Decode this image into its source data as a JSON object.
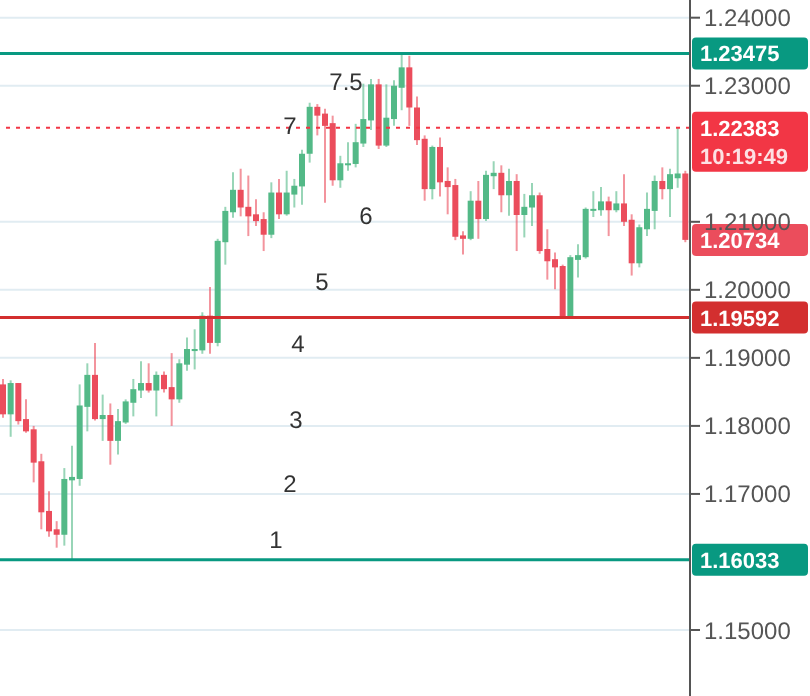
{
  "chart_data": {
    "type": "candlestick",
    "categories": [
      null,
      null,
      null,
      null,
      null,
      null,
      null,
      null,
      null,
      null,
      null,
      null,
      null,
      null,
      null,
      null,
      null,
      null,
      null,
      null,
      null,
      null,
      null,
      null,
      null,
      null,
      null,
      null,
      null,
      null,
      null,
      null,
      null,
      null,
      null,
      null,
      null,
      null,
      null,
      null,
      null,
      null,
      null,
      null,
      null,
      null,
      null,
      null,
      null,
      null,
      null,
      null,
      null,
      null,
      null,
      null,
      null,
      null,
      null,
      null,
      null,
      null,
      null,
      null,
      null,
      null,
      null,
      null,
      null,
      null,
      null,
      null,
      null,
      null,
      null,
      null,
      null,
      null,
      null,
      null,
      null,
      null,
      null,
      null,
      null,
      null,
      null,
      null,
      null,
      null
    ],
    "ohlc": [
      [
        1.1861,
        1.1869,
        1.1812,
        1.1817
      ],
      [
        1.1817,
        1.1867,
        1.1784,
        1.1863
      ],
      [
        1.1863,
        1.1863,
        1.1802,
        1.1807
      ],
      [
        1.181,
        1.1839,
        1.179,
        1.1792
      ],
      [
        1.1795,
        1.18,
        1.1717,
        1.1746
      ],
      [
        1.1748,
        1.1759,
        1.1648,
        1.1673
      ],
      [
        1.1675,
        1.1704,
        1.1637,
        1.1645
      ],
      [
        1.1648,
        1.166,
        1.1621,
        1.164
      ],
      [
        1.164,
        1.1738,
        1.1624,
        1.1722
      ],
      [
        1.172,
        1.1771,
        1.16033,
        1.1725
      ],
      [
        1.1722,
        1.1861,
        1.1712,
        1.183
      ],
      [
        1.1828,
        1.1892,
        1.1792,
        1.1875
      ],
      [
        1.1875,
        1.1922,
        1.1808,
        1.181
      ],
      [
        1.181,
        1.1846,
        1.1778,
        1.1816
      ],
      [
        1.1816,
        1.1833,
        1.1743,
        1.1778
      ],
      [
        1.1778,
        1.1825,
        1.1758,
        1.1807
      ],
      [
        1.1805,
        1.1839,
        1.1803,
        1.1836
      ],
      [
        1.1834,
        1.1869,
        1.1814,
        1.1854
      ],
      [
        1.1852,
        1.1895,
        1.1841,
        1.1863
      ],
      [
        1.1863,
        1.1892,
        1.1849,
        1.1852
      ],
      [
        1.1852,
        1.188,
        1.1814,
        1.1875
      ],
      [
        1.1875,
        1.188,
        1.1849,
        1.1854
      ],
      [
        1.1857,
        1.1907,
        1.18,
        1.1839
      ],
      [
        1.1839,
        1.1898,
        1.1834,
        1.1892
      ],
      [
        1.189,
        1.193,
        1.1881,
        1.1913
      ],
      [
        1.191,
        1.1942,
        1.1883,
        1.1913
      ],
      [
        1.1911,
        1.1967,
        1.1906,
        1.1962
      ],
      [
        1.1962,
        1.2004,
        1.1906,
        1.1922
      ],
      [
        1.1922,
        1.2075,
        1.1917,
        1.2072
      ],
      [
        1.207,
        1.2122,
        1.2037,
        1.2116
      ],
      [
        1.2114,
        1.2173,
        1.2106,
        1.2147
      ],
      [
        1.2147,
        1.2178,
        1.2108,
        1.2121
      ],
      [
        1.2122,
        1.2168,
        1.2079,
        1.2108
      ],
      [
        1.2111,
        1.2133,
        1.2094,
        1.2101
      ],
      [
        1.2104,
        1.2114,
        1.2057,
        1.2081
      ],
      [
        1.2081,
        1.2158,
        1.2076,
        1.2143
      ],
      [
        1.2143,
        1.2163,
        1.2104,
        1.2111
      ],
      [
        1.2111,
        1.2175,
        1.2109,
        1.2143
      ],
      [
        1.214,
        1.2163,
        1.2121,
        1.2153
      ],
      [
        1.2152,
        1.2206,
        1.2125,
        1.22
      ],
      [
        1.22,
        1.2275,
        1.2187,
        1.2269
      ],
      [
        1.2269,
        1.2273,
        1.2227,
        1.2256
      ],
      [
        1.2259,
        1.2266,
        1.2128,
        1.2241
      ],
      [
        1.2245,
        1.2256,
        1.2153,
        1.2161
      ],
      [
        1.2161,
        1.2197,
        1.215,
        1.2186
      ],
      [
        1.2185,
        1.2217,
        1.2175,
        1.2186
      ],
      [
        1.2185,
        1.2244,
        1.218,
        1.2217
      ],
      [
        1.2215,
        1.2303,
        1.221,
        1.2251
      ],
      [
        1.2249,
        1.231,
        1.2235,
        1.2302
      ],
      [
        1.2302,
        1.231,
        1.2207,
        1.2212
      ],
      [
        1.2212,
        1.2302,
        1.221,
        1.2253
      ],
      [
        1.2251,
        1.2308,
        1.2241,
        1.23
      ],
      [
        1.2297,
        1.23475,
        1.2264,
        1.2327
      ],
      [
        1.2327,
        1.2344,
        1.2241,
        1.2268
      ],
      [
        1.2268,
        1.2284,
        1.2213,
        1.222
      ],
      [
        1.2222,
        1.2227,
        1.2131,
        1.2148
      ],
      [
        1.2148,
        1.2212,
        1.2133,
        1.221
      ],
      [
        1.221,
        1.2224,
        1.2137,
        1.2158
      ],
      [
        1.216,
        1.218,
        1.2111,
        1.2151
      ],
      [
        1.2154,
        1.2163,
        1.2073,
        1.2078
      ],
      [
        1.208,
        1.2086,
        1.2052,
        1.2075
      ],
      [
        1.2075,
        1.2145,
        1.2073,
        1.2131
      ],
      [
        1.2131,
        1.216,
        1.2075,
        1.2104
      ],
      [
        1.2104,
        1.2175,
        1.2101,
        1.2169
      ],
      [
        1.2167,
        1.2189,
        1.2148,
        1.2172
      ],
      [
        1.2172,
        1.2183,
        1.2114,
        1.2139
      ],
      [
        1.2139,
        1.2178,
        1.2109,
        1.216
      ],
      [
        1.216,
        1.217,
        1.2057,
        1.211
      ],
      [
        1.211,
        1.2141,
        1.2077,
        1.2122
      ],
      [
        1.2121,
        1.2157,
        1.2094,
        1.2139
      ],
      [
        1.2139,
        1.2143,
        1.2053,
        1.2057
      ],
      [
        1.206,
        1.2089,
        1.2015,
        1.2042
      ],
      [
        1.2045,
        1.2055,
        1.2001,
        1.2033
      ],
      [
        1.2035,
        1.2037,
        1.19592,
        1.1961
      ],
      [
        1.1961,
        1.2051,
        1.196,
        1.2048
      ],
      [
        1.2044,
        1.2067,
        1.2018,
        1.2051
      ],
      [
        1.2048,
        1.2121,
        1.2046,
        1.2119
      ],
      [
        1.2117,
        1.2145,
        1.2107,
        1.2119
      ],
      [
        1.2117,
        1.2151,
        1.2109,
        1.213
      ],
      [
        1.213,
        1.2137,
        1.2079,
        1.2117
      ],
      [
        1.2117,
        1.2145,
        1.2114,
        1.2127
      ],
      [
        1.2127,
        1.217,
        1.2094,
        1.21
      ],
      [
        1.2103,
        1.2111,
        1.2021,
        1.2039
      ],
      [
        1.2039,
        1.2096,
        1.2033,
        1.2092
      ],
      [
        1.2089,
        1.2143,
        1.2079,
        1.2119
      ],
      [
        1.2116,
        1.2168,
        1.2089,
        1.216
      ],
      [
        1.216,
        1.218,
        1.2133,
        1.2148
      ],
      [
        1.2148,
        1.2178,
        1.2107,
        1.217
      ],
      [
        1.2164,
        1.2238,
        1.215,
        1.2171
      ],
      [
        1.2171,
        1.2175,
        1.207,
        1.20734
      ]
    ],
    "colors": [
      "#eb4d5c",
      "#53b987",
      "#eb4d5c",
      "#eb4d5c",
      "#eb4d5c",
      "#eb4d5c",
      "#eb4d5c",
      "#eb4d5c",
      "#53b987",
      "#53b987",
      "#53b987",
      "#53b987",
      "#eb4d5c",
      "#53b987",
      "#eb4d5c",
      "#53b987",
      "#53b987",
      "#53b987",
      "#53b987",
      "#eb4d5c",
      "#53b987",
      "#eb4d5c",
      "#eb4d5c",
      "#53b987",
      "#53b987",
      "#53b987",
      "#53b987",
      "#eb4d5c",
      "#53b987",
      "#53b987",
      "#53b987",
      "#eb4d5c",
      "#eb4d5c",
      "#eb4d5c",
      "#eb4d5c",
      "#53b987",
      "#eb4d5c",
      "#53b987",
      "#53b987",
      "#53b987",
      "#53b987",
      "#eb4d5c",
      "#eb4d5c",
      "#eb4d5c",
      "#53b987",
      "#53b987",
      "#53b987",
      "#53b987",
      "#53b987",
      "#eb4d5c",
      "#53b987",
      "#53b987",
      "#53b987",
      "#eb4d5c",
      "#eb4d5c",
      "#eb4d5c",
      "#53b987",
      "#eb4d5c",
      "#eb4d5c",
      "#eb4d5c",
      "#eb4d5c",
      "#53b987",
      "#eb4d5c",
      "#53b987",
      "#53b987",
      "#eb4d5c",
      "#53b987",
      "#eb4d5c",
      "#53b987",
      "#53b987",
      "#eb4d5c",
      "#eb4d5c",
      "#eb4d5c",
      "#eb4d5c",
      "#53b987",
      "#53b987",
      "#53b987",
      "#53b987",
      "#53b987",
      "#eb4d5c",
      "#53b987",
      "#eb4d5c",
      "#eb4d5c",
      "#53b987",
      "#53b987",
      "#53b987",
      "#eb4d5c",
      "#53b987",
      "#53b987",
      "#eb4d5c"
    ],
    "ylim": [
      1.1403,
      1.2426
    ],
    "yticks": [
      {
        "value": 1.15,
        "label": "1.15000"
      },
      {
        "value": 1.17,
        "label": "1.17000"
      },
      {
        "value": 1.18,
        "label": "1.18000"
      },
      {
        "value": 1.19,
        "label": "1.19000"
      },
      {
        "value": 1.2,
        "label": "1.20000"
      },
      {
        "value": 1.21,
        "label": "1.21000"
      },
      {
        "value": 1.23,
        "label": "1.23000"
      },
      {
        "value": 1.24,
        "label": "1.24000"
      }
    ],
    "tick_labels": "y",
    "grid": "y",
    "ref_lines": [
      {
        "axis": "y",
        "value": 1.23475,
        "label": "1.23475",
        "color": "#089981",
        "line_style": "solid"
      },
      {
        "axis": "y",
        "value": 1.22383,
        "label": "1.22383\n10:19:49",
        "color": "#f23645",
        "line_style": "dotted"
      },
      {
        "axis": "y",
        "value": 1.19592,
        "label": "1.19592",
        "color": "#d32f2f",
        "line_style": "solid"
      },
      {
        "axis": "y",
        "value": 1.16033,
        "label": "1.16033",
        "color": "#089981",
        "line_style": "solid"
      }
    ],
    "annotations": [
      "1",
      "2",
      "3",
      "4",
      "5",
      "6",
      "7",
      "7.5",
      "1.20734"
    ]
  }
}
